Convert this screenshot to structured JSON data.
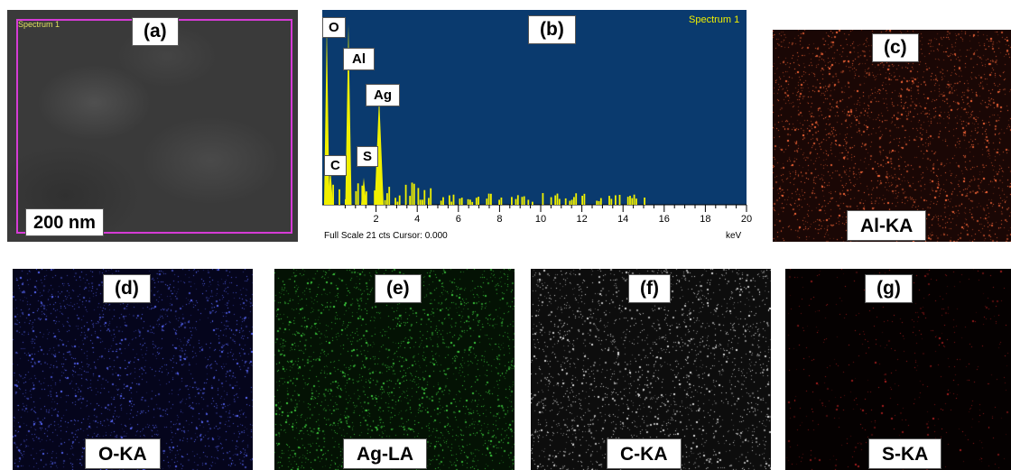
{
  "panels": {
    "a": {
      "letter": "(a)",
      "spectrum_label": "Spectrum 1",
      "scale_label": "200 nm",
      "frame_color": "#d63bd6"
    },
    "b": {
      "letter": "(b)",
      "spectrum_label": "Spectrum 1",
      "footer_text": "Full Scale 21 cts Cursor: 0.000",
      "unit": "keV",
      "background_color": "#0a3a6e",
      "peak_color": "#f0f000",
      "peak_labels": [
        "O",
        "Al",
        "Ag",
        "C",
        "S"
      ],
      "tick_labels": [
        "2",
        "4",
        "6",
        "8",
        "10",
        "12",
        "14",
        "16",
        "18",
        "20"
      ]
    },
    "c": {
      "letter": "(c)",
      "element": "Al-KA",
      "dot_color": "#ff6a3a"
    },
    "d": {
      "letter": "(d)",
      "element": "O-KA",
      "dot_color": "#5a6aff"
    },
    "e": {
      "letter": "(e)",
      "element": "Ag-LA",
      "dot_color": "#3fd13f"
    },
    "f": {
      "letter": "(f)",
      "element": "C-KA",
      "dot_color": "#e0e0e0"
    },
    "g": {
      "letter": "(g)",
      "element": "S-KA",
      "dot_color": "#b02020"
    }
  }
}
